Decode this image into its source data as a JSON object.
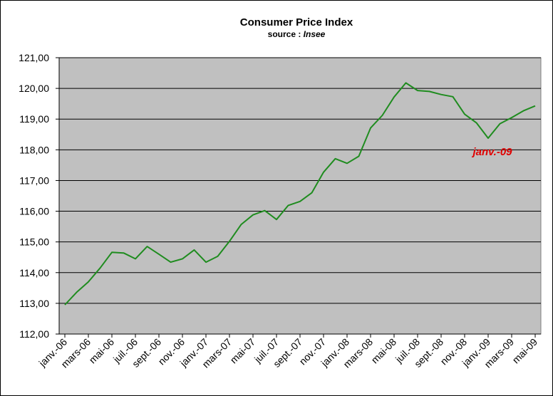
{
  "chart_data": {
    "type": "line",
    "title": "Consumer Price Index",
    "subtitle_prefix": "source : ",
    "subtitle_source": "Insee",
    "xlabel": "",
    "ylabel": "",
    "ylim": [
      112,
      121
    ],
    "yticks": [
      "112,00",
      "113,00",
      "114,00",
      "115,00",
      "116,00",
      "117,00",
      "118,00",
      "119,00",
      "120,00",
      "121,00"
    ],
    "grid": true,
    "x_tick_labels": [
      "janv.-06",
      "mars-06",
      "mai-06",
      "juil.-06",
      "sept.-06",
      "nov.-06",
      "janv.-07",
      "mars-07",
      "mai-07",
      "juil.-07",
      "sept.-07",
      "nov.-07",
      "janv.-08",
      "mars-08",
      "mai-08",
      "juil.-08",
      "sept.-08",
      "nov.-08",
      "janv.-09",
      "mars-09",
      "mai-09"
    ],
    "x": [
      "janv.-06",
      "févr.-06",
      "mars-06",
      "avr.-06",
      "mai-06",
      "juin-06",
      "juil.-06",
      "août-06",
      "sept.-06",
      "oct.-06",
      "nov.-06",
      "déc.-06",
      "janv.-07",
      "févr.-07",
      "mars-07",
      "avr.-07",
      "mai-07",
      "juin-07",
      "juil.-07",
      "août-07",
      "sept.-07",
      "oct.-07",
      "nov.-07",
      "déc.-07",
      "janv.-08",
      "févr.-08",
      "mars-08",
      "avr.-08",
      "mai-08",
      "juin-08",
      "juil.-08",
      "août-08",
      "sept.-08",
      "oct.-08",
      "nov.-08",
      "déc.-08",
      "janv.-09",
      "févr.-09",
      "mars-09",
      "avr.-09",
      "mai-09"
    ],
    "series": [
      {
        "color": "#1f8c1f",
        "values": [
          112.95,
          113.36,
          113.7,
          114.15,
          114.66,
          114.64,
          114.45,
          114.85,
          114.6,
          114.34,
          114.45,
          114.74,
          114.34,
          114.53,
          115.02,
          115.57,
          115.88,
          116.02,
          115.73,
          116.19,
          116.32,
          116.6,
          117.27,
          117.71,
          117.56,
          117.79,
          118.71,
          119.12,
          119.72,
          120.18,
          119.93,
          119.9,
          119.8,
          119.73,
          119.16,
          118.88,
          118.38,
          118.85,
          119.05,
          119.27,
          119.43
        ]
      }
    ],
    "annotation": {
      "text": "janv.-09",
      "x": "janv.-09",
      "y": 118.15
    },
    "colors": {
      "plot_background": "#c0c0c0",
      "line": "#1f8c1f",
      "annotation": "#e00000",
      "grid": "#000000"
    }
  }
}
